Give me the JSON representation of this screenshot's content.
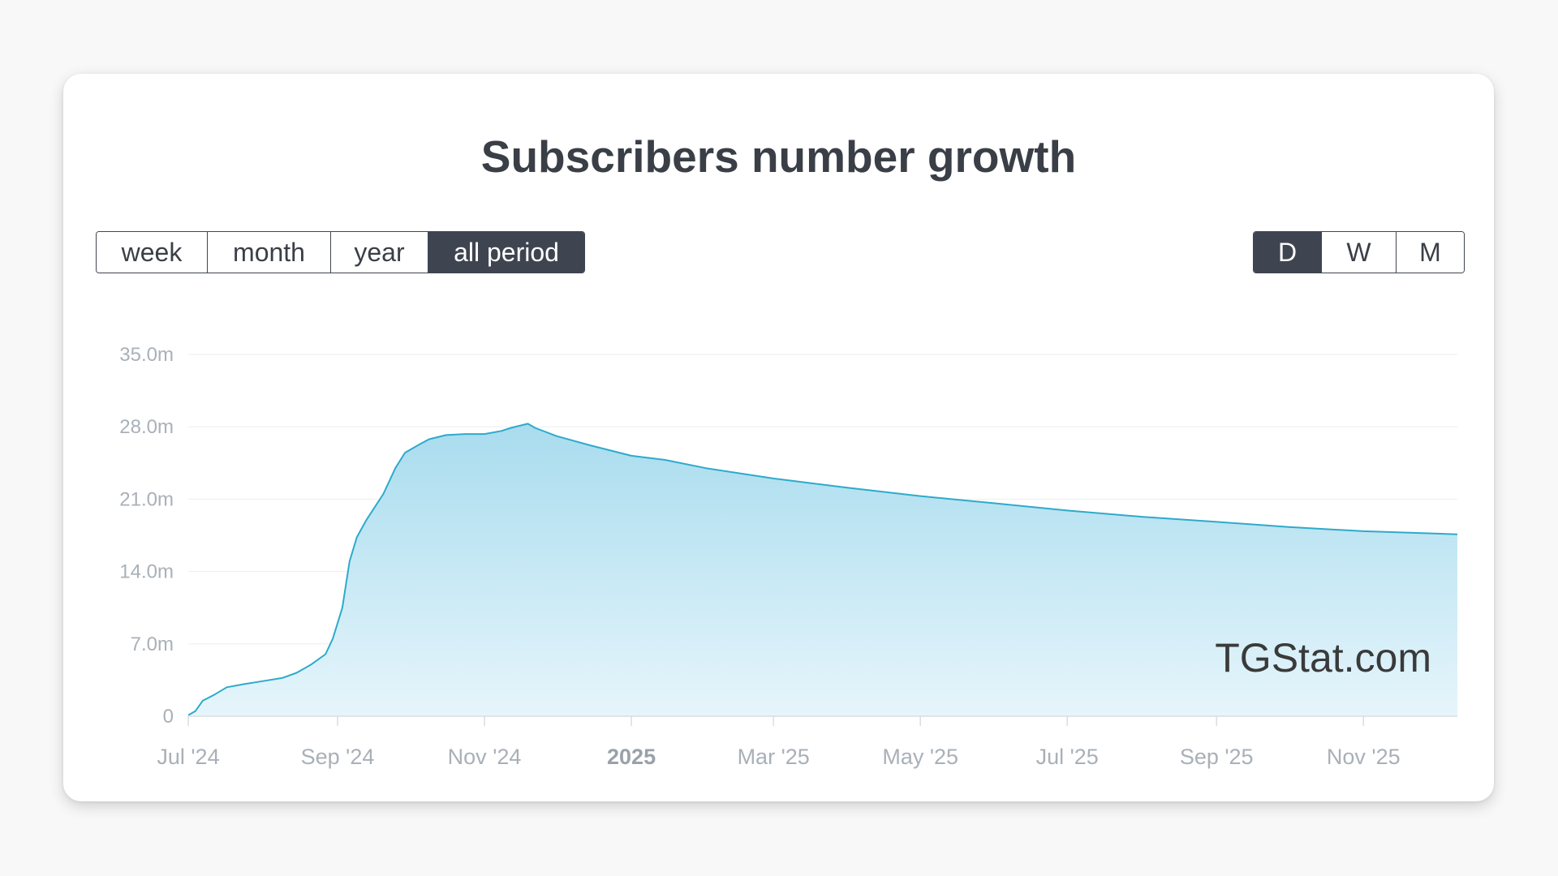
{
  "title": "Subscribers number growth",
  "period_buttons": [
    {
      "label": "week",
      "active": false
    },
    {
      "label": "month",
      "active": false
    },
    {
      "label": "year",
      "active": false
    },
    {
      "label": "all period",
      "active": true
    }
  ],
  "granularity_buttons": [
    {
      "label": "D",
      "active": true
    },
    {
      "label": "W",
      "active": false
    },
    {
      "label": "M",
      "active": false
    }
  ],
  "watermark": "TGStat.com",
  "colors": {
    "line": "#2eaacb",
    "fill_top": "#a8dcee",
    "fill_bottom": "#e6f5fb",
    "grid": "#eeeeee",
    "active_button": "#3f4550"
  },
  "chart_data": {
    "type": "area",
    "title": "Subscribers number growth",
    "y_unit": "millions",
    "ylim": [
      0,
      35
    ],
    "yticks": [
      0,
      7,
      14,
      21,
      28,
      35
    ],
    "ytick_labels": [
      "0",
      "7.0m",
      "14.0m",
      "21.0m",
      "28.0m",
      "35.0m"
    ],
    "xlim": [
      "2024-07-01",
      "2025-12-10"
    ],
    "xticks": [
      {
        "date": "2024-07-01",
        "label": "Jul '24",
        "major": false
      },
      {
        "date": "2024-09-01",
        "label": "Sep '24",
        "major": false
      },
      {
        "date": "2024-11-01",
        "label": "Nov '24",
        "major": false
      },
      {
        "date": "2025-01-01",
        "label": "2025",
        "major": true
      },
      {
        "date": "2025-03-01",
        "label": "Mar '25",
        "major": false
      },
      {
        "date": "2025-05-01",
        "label": "May '25",
        "major": false
      },
      {
        "date": "2025-07-01",
        "label": "Jul '25",
        "major": false
      },
      {
        "date": "2025-09-01",
        "label": "Sep '25",
        "major": false
      },
      {
        "date": "2025-11-01",
        "label": "Nov '25",
        "major": false
      }
    ],
    "grid": true,
    "legend": false,
    "series": [
      {
        "points": [
          [
            "2024-07-01",
            0.1
          ],
          [
            "2024-07-04",
            0.5
          ],
          [
            "2024-07-07",
            1.5
          ],
          [
            "2024-07-12",
            2.1
          ],
          [
            "2024-07-17",
            2.8
          ],
          [
            "2024-07-24",
            3.1
          ],
          [
            "2024-08-01",
            3.4
          ],
          [
            "2024-08-09",
            3.7
          ],
          [
            "2024-08-15",
            4.2
          ],
          [
            "2024-08-21",
            5.0
          ],
          [
            "2024-08-27",
            6.0
          ],
          [
            "2024-08-30",
            7.5
          ],
          [
            "2024-09-03",
            10.5
          ],
          [
            "2024-09-06",
            15.0
          ],
          [
            "2024-09-09",
            17.3
          ],
          [
            "2024-09-13",
            19.0
          ],
          [
            "2024-09-20",
            21.5
          ],
          [
            "2024-09-25",
            24.0
          ],
          [
            "2024-09-29",
            25.5
          ],
          [
            "2024-10-05",
            26.3
          ],
          [
            "2024-10-09",
            26.8
          ],
          [
            "2024-10-16",
            27.2
          ],
          [
            "2024-10-24",
            27.3
          ],
          [
            "2024-11-01",
            27.3
          ],
          [
            "2024-11-08",
            27.6
          ],
          [
            "2024-11-12",
            27.9
          ],
          [
            "2024-11-19",
            28.3
          ],
          [
            "2024-11-22",
            27.9
          ],
          [
            "2024-12-01",
            27.1
          ],
          [
            "2024-12-15",
            26.2
          ],
          [
            "2025-01-01",
            25.2
          ],
          [
            "2025-01-15",
            24.8
          ],
          [
            "2025-02-01",
            24.0
          ],
          [
            "2025-03-01",
            23.0
          ],
          [
            "2025-04-01",
            22.1
          ],
          [
            "2025-05-01",
            21.3
          ],
          [
            "2025-06-01",
            20.6
          ],
          [
            "2025-07-01",
            19.9
          ],
          [
            "2025-08-01",
            19.3
          ],
          [
            "2025-09-01",
            18.8
          ],
          [
            "2025-10-01",
            18.3
          ],
          [
            "2025-11-01",
            17.9
          ],
          [
            "2025-12-10",
            17.6
          ]
        ]
      }
    ]
  }
}
